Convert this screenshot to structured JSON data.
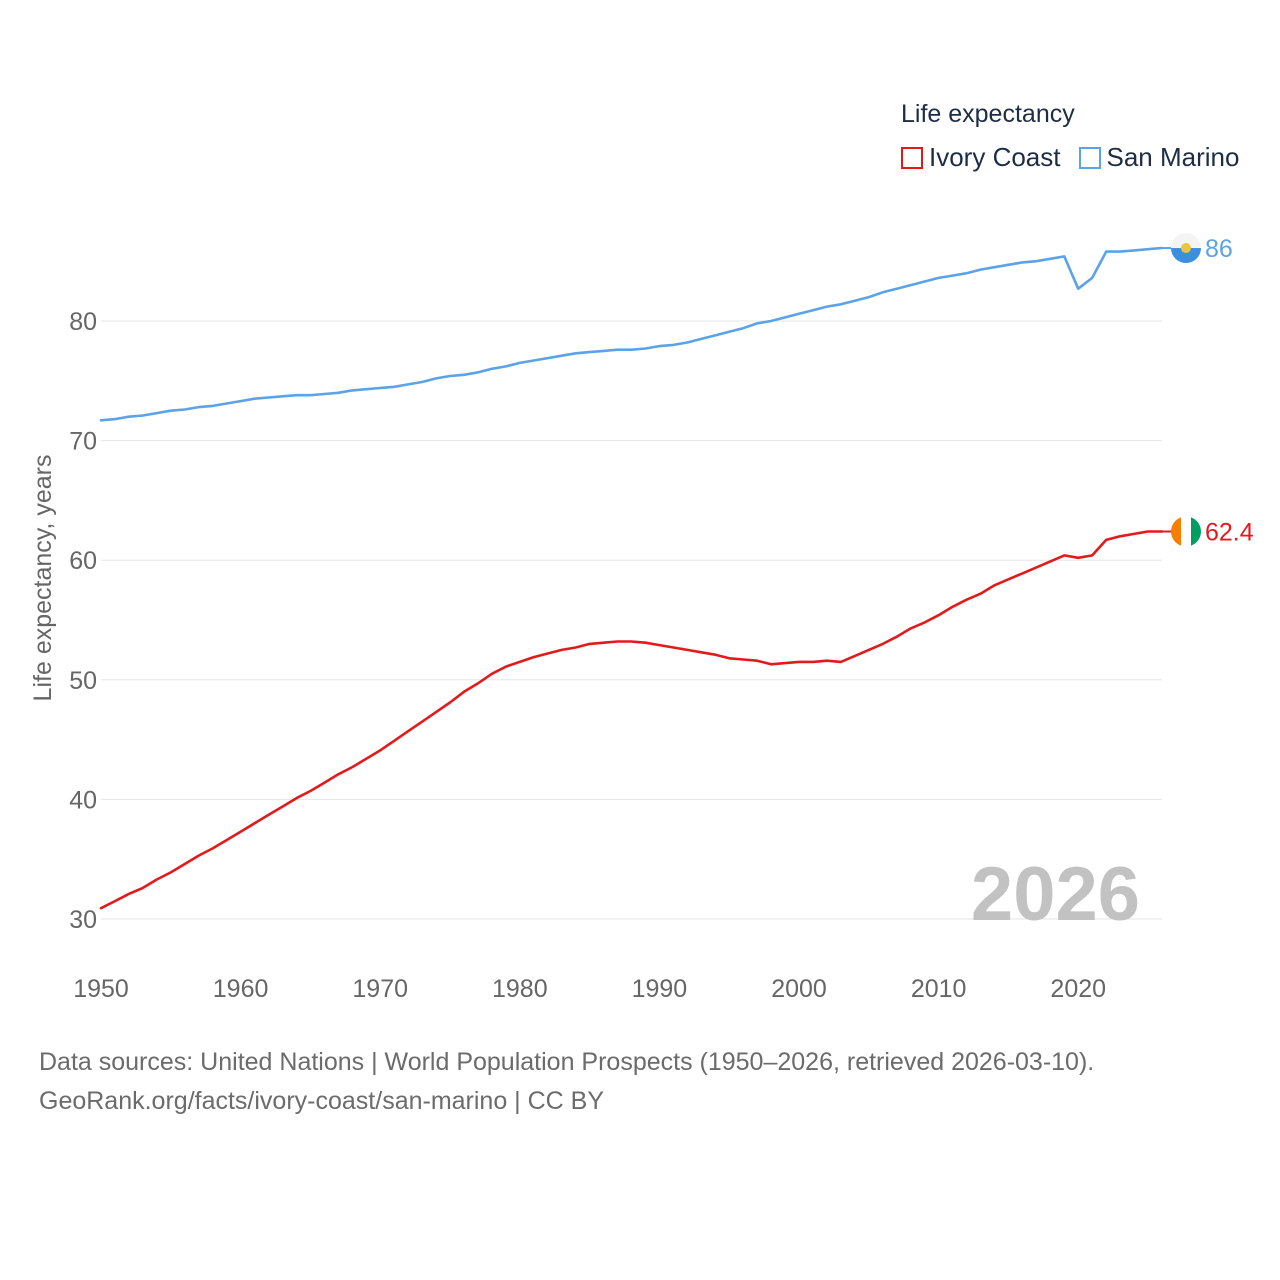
{
  "chart_data": {
    "type": "line",
    "ylabel": "Life expectancy, years",
    "xlabel": "",
    "year_label": "2026",
    "xlim": [
      1950,
      2026
    ],
    "ylim": [
      30,
      86
    ],
    "x_ticks": [
      1950,
      1960,
      1970,
      1980,
      1990,
      2000,
      2010,
      2020
    ],
    "y_ticks": [
      30,
      40,
      50,
      60,
      70,
      80
    ],
    "legend": {
      "title": "Life expectancy",
      "placement": "top-right"
    },
    "x": [
      1950,
      1951,
      1952,
      1953,
      1954,
      1955,
      1956,
      1957,
      1958,
      1959,
      1960,
      1961,
      1962,
      1963,
      1964,
      1965,
      1966,
      1967,
      1968,
      1969,
      1970,
      1971,
      1972,
      1973,
      1974,
      1975,
      1976,
      1977,
      1978,
      1979,
      1980,
      1981,
      1982,
      1983,
      1984,
      1985,
      1986,
      1987,
      1988,
      1989,
      1990,
      1991,
      1992,
      1993,
      1994,
      1995,
      1996,
      1997,
      1998,
      1999,
      2000,
      2001,
      2002,
      2003,
      2004,
      2005,
      2006,
      2007,
      2008,
      2009,
      2010,
      2011,
      2012,
      2013,
      2014,
      2015,
      2016,
      2017,
      2018,
      2019,
      2020,
      2021,
      2022,
      2023,
      2024,
      2025,
      2026
    ],
    "series": [
      {
        "name": "Ivory Coast",
        "color": "#e31a1c",
        "end_label": "62.4",
        "flag": "ivory-coast-flag",
        "values": [
          30.9,
          31.5,
          32.1,
          32.6,
          33.3,
          33.9,
          34.6,
          35.3,
          35.9,
          36.6,
          37.3,
          38.0,
          38.7,
          39.4,
          40.1,
          40.7,
          41.4,
          42.1,
          42.7,
          43.4,
          44.1,
          44.9,
          45.7,
          46.5,
          47.3,
          48.1,
          49.0,
          49.7,
          50.5,
          51.1,
          51.5,
          51.9,
          52.2,
          52.5,
          52.7,
          53.0,
          53.1,
          53.2,
          53.2,
          53.1,
          52.9,
          52.7,
          52.5,
          52.3,
          52.1,
          51.8,
          51.7,
          51.6,
          51.3,
          51.4,
          51.5,
          51.5,
          51.6,
          51.5,
          52.0,
          52.5,
          53.0,
          53.6,
          54.3,
          54.8,
          55.4,
          56.1,
          56.7,
          57.2,
          57.9,
          58.4,
          58.9,
          59.4,
          59.9,
          60.4,
          60.2,
          60.4,
          61.7,
          62.0,
          62.2,
          62.4,
          62.4
        ]
      },
      {
        "name": "San Marino",
        "color": "#5ba3e6",
        "end_label": "86",
        "flag": "san-marino-flag",
        "values": [
          71.7,
          71.8,
          72.0,
          72.1,
          72.3,
          72.5,
          72.6,
          72.8,
          72.9,
          73.1,
          73.3,
          73.5,
          73.6,
          73.7,
          73.8,
          73.8,
          73.9,
          74.0,
          74.2,
          74.3,
          74.4,
          74.5,
          74.7,
          74.9,
          75.2,
          75.4,
          75.5,
          75.7,
          76.0,
          76.2,
          76.5,
          76.7,
          76.9,
          77.1,
          77.3,
          77.4,
          77.5,
          77.6,
          77.6,
          77.7,
          77.9,
          78.0,
          78.2,
          78.5,
          78.8,
          79.1,
          79.4,
          79.8,
          80.0,
          80.3,
          80.6,
          80.9,
          81.2,
          81.4,
          81.7,
          82.0,
          82.4,
          82.7,
          83.0,
          83.3,
          83.6,
          83.8,
          84.0,
          84.3,
          84.5,
          84.7,
          84.9,
          85.0,
          85.2,
          85.4,
          82.7,
          83.6,
          85.8,
          85.8,
          85.9,
          86.0,
          86.1
        ]
      }
    ]
  },
  "footer": {
    "line1": "Data sources: United Nations | World Population Prospects (1950–2026, retrieved 2026-03-10).",
    "line2": "GeoRank.org/facts/ivory-coast/san-marino | CC BY"
  }
}
